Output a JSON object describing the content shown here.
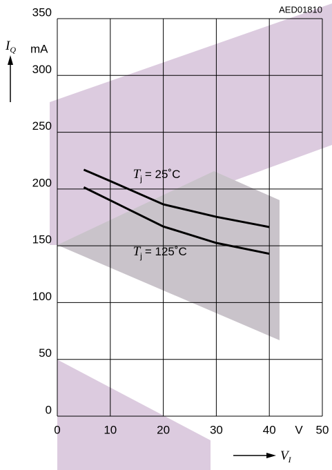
{
  "chart_data": {
    "type": "line",
    "code": "AED01810",
    "y_label": {
      "symbol": "I",
      "subscript": "Q",
      "unit": "mA"
    },
    "x_label": {
      "symbol": "V",
      "subscript": "I",
      "unit": "V"
    },
    "xlim": [
      0,
      50
    ],
    "xticks": [
      0,
      10,
      20,
      30,
      40,
      50
    ],
    "ylim": [
      0,
      350
    ],
    "yticks": [
      0,
      50,
      100,
      150,
      200,
      250,
      300,
      350
    ],
    "grid": true,
    "x": [
      5,
      10,
      20,
      30,
      40
    ],
    "series": [
      {
        "label": {
          "symbol": "T",
          "subscript": "j",
          "text": "= 25˚C"
        },
        "color": "#000000",
        "values": [
          217,
          207,
          186.5,
          175.5,
          166.5
        ]
      },
      {
        "label": {
          "symbol": "T",
          "subscript": "j",
          "text": "= 125˚C"
        },
        "color": "#000000",
        "values": [
          201.5,
          190,
          167,
          152.5,
          143
        ]
      }
    ]
  }
}
